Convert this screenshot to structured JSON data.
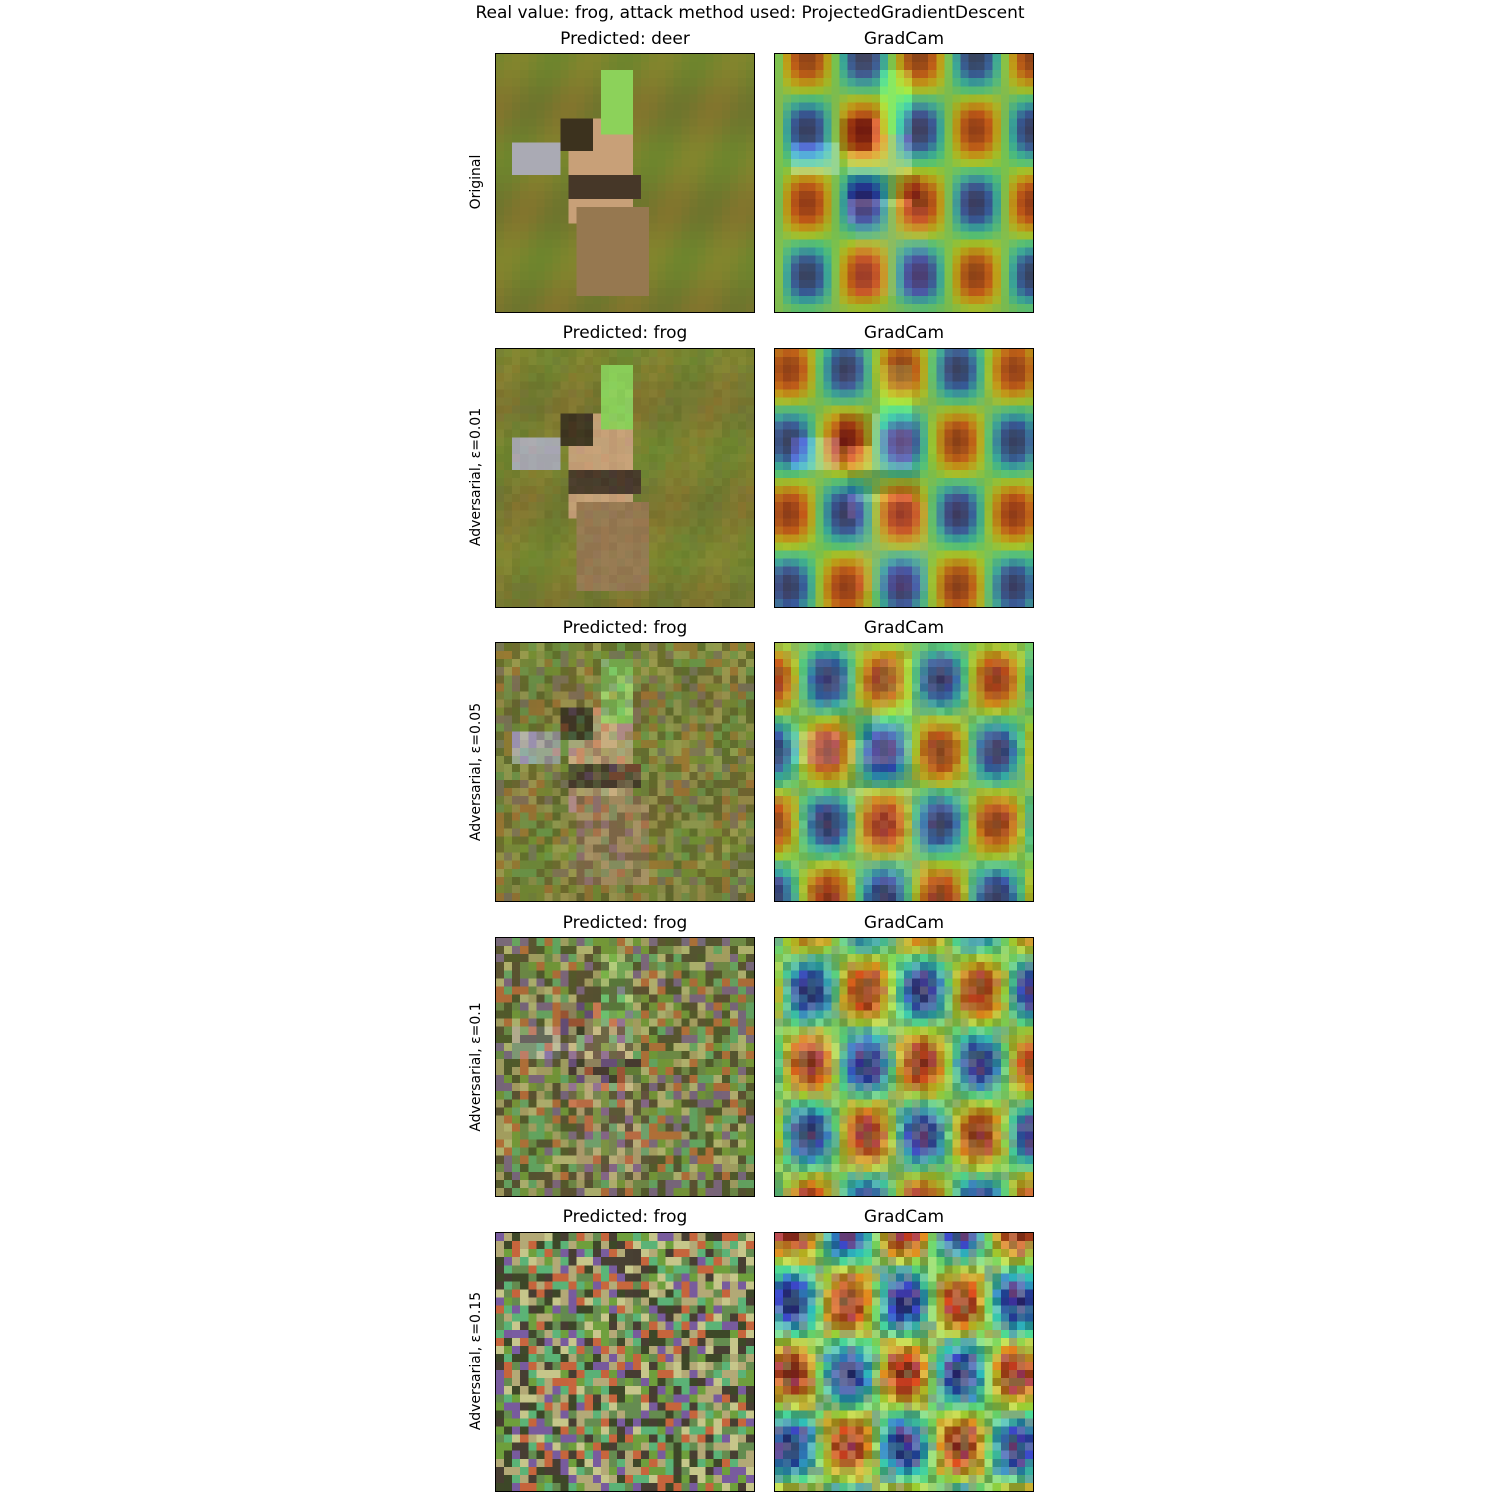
{
  "figure": {
    "suptitle": "Real value: frog, attack method used: ProjectedGradientDescent",
    "rows": [
      {
        "row_label": "Original",
        "left_title": "Predicted: deer",
        "right_title": "GradCam",
        "noise_level": 0.0
      },
      {
        "row_label": "Adversarial, ε=0.01",
        "left_title": "Predicted: frog",
        "right_title": "GradCam",
        "noise_level": 0.01
      },
      {
        "row_label": "Adversarial, ε=0.05",
        "left_title": "Predicted: frog",
        "right_title": "GradCam",
        "noise_level": 0.05
      },
      {
        "row_label": "Adversarial, ε=0.1",
        "left_title": "Predicted: frog",
        "right_title": "GradCam",
        "noise_level": 0.1
      },
      {
        "row_label": "Adversarial, ε=0.15",
        "left_title": "Predicted: frog",
        "right_title": "GradCam",
        "noise_level": 0.15
      }
    ]
  }
}
